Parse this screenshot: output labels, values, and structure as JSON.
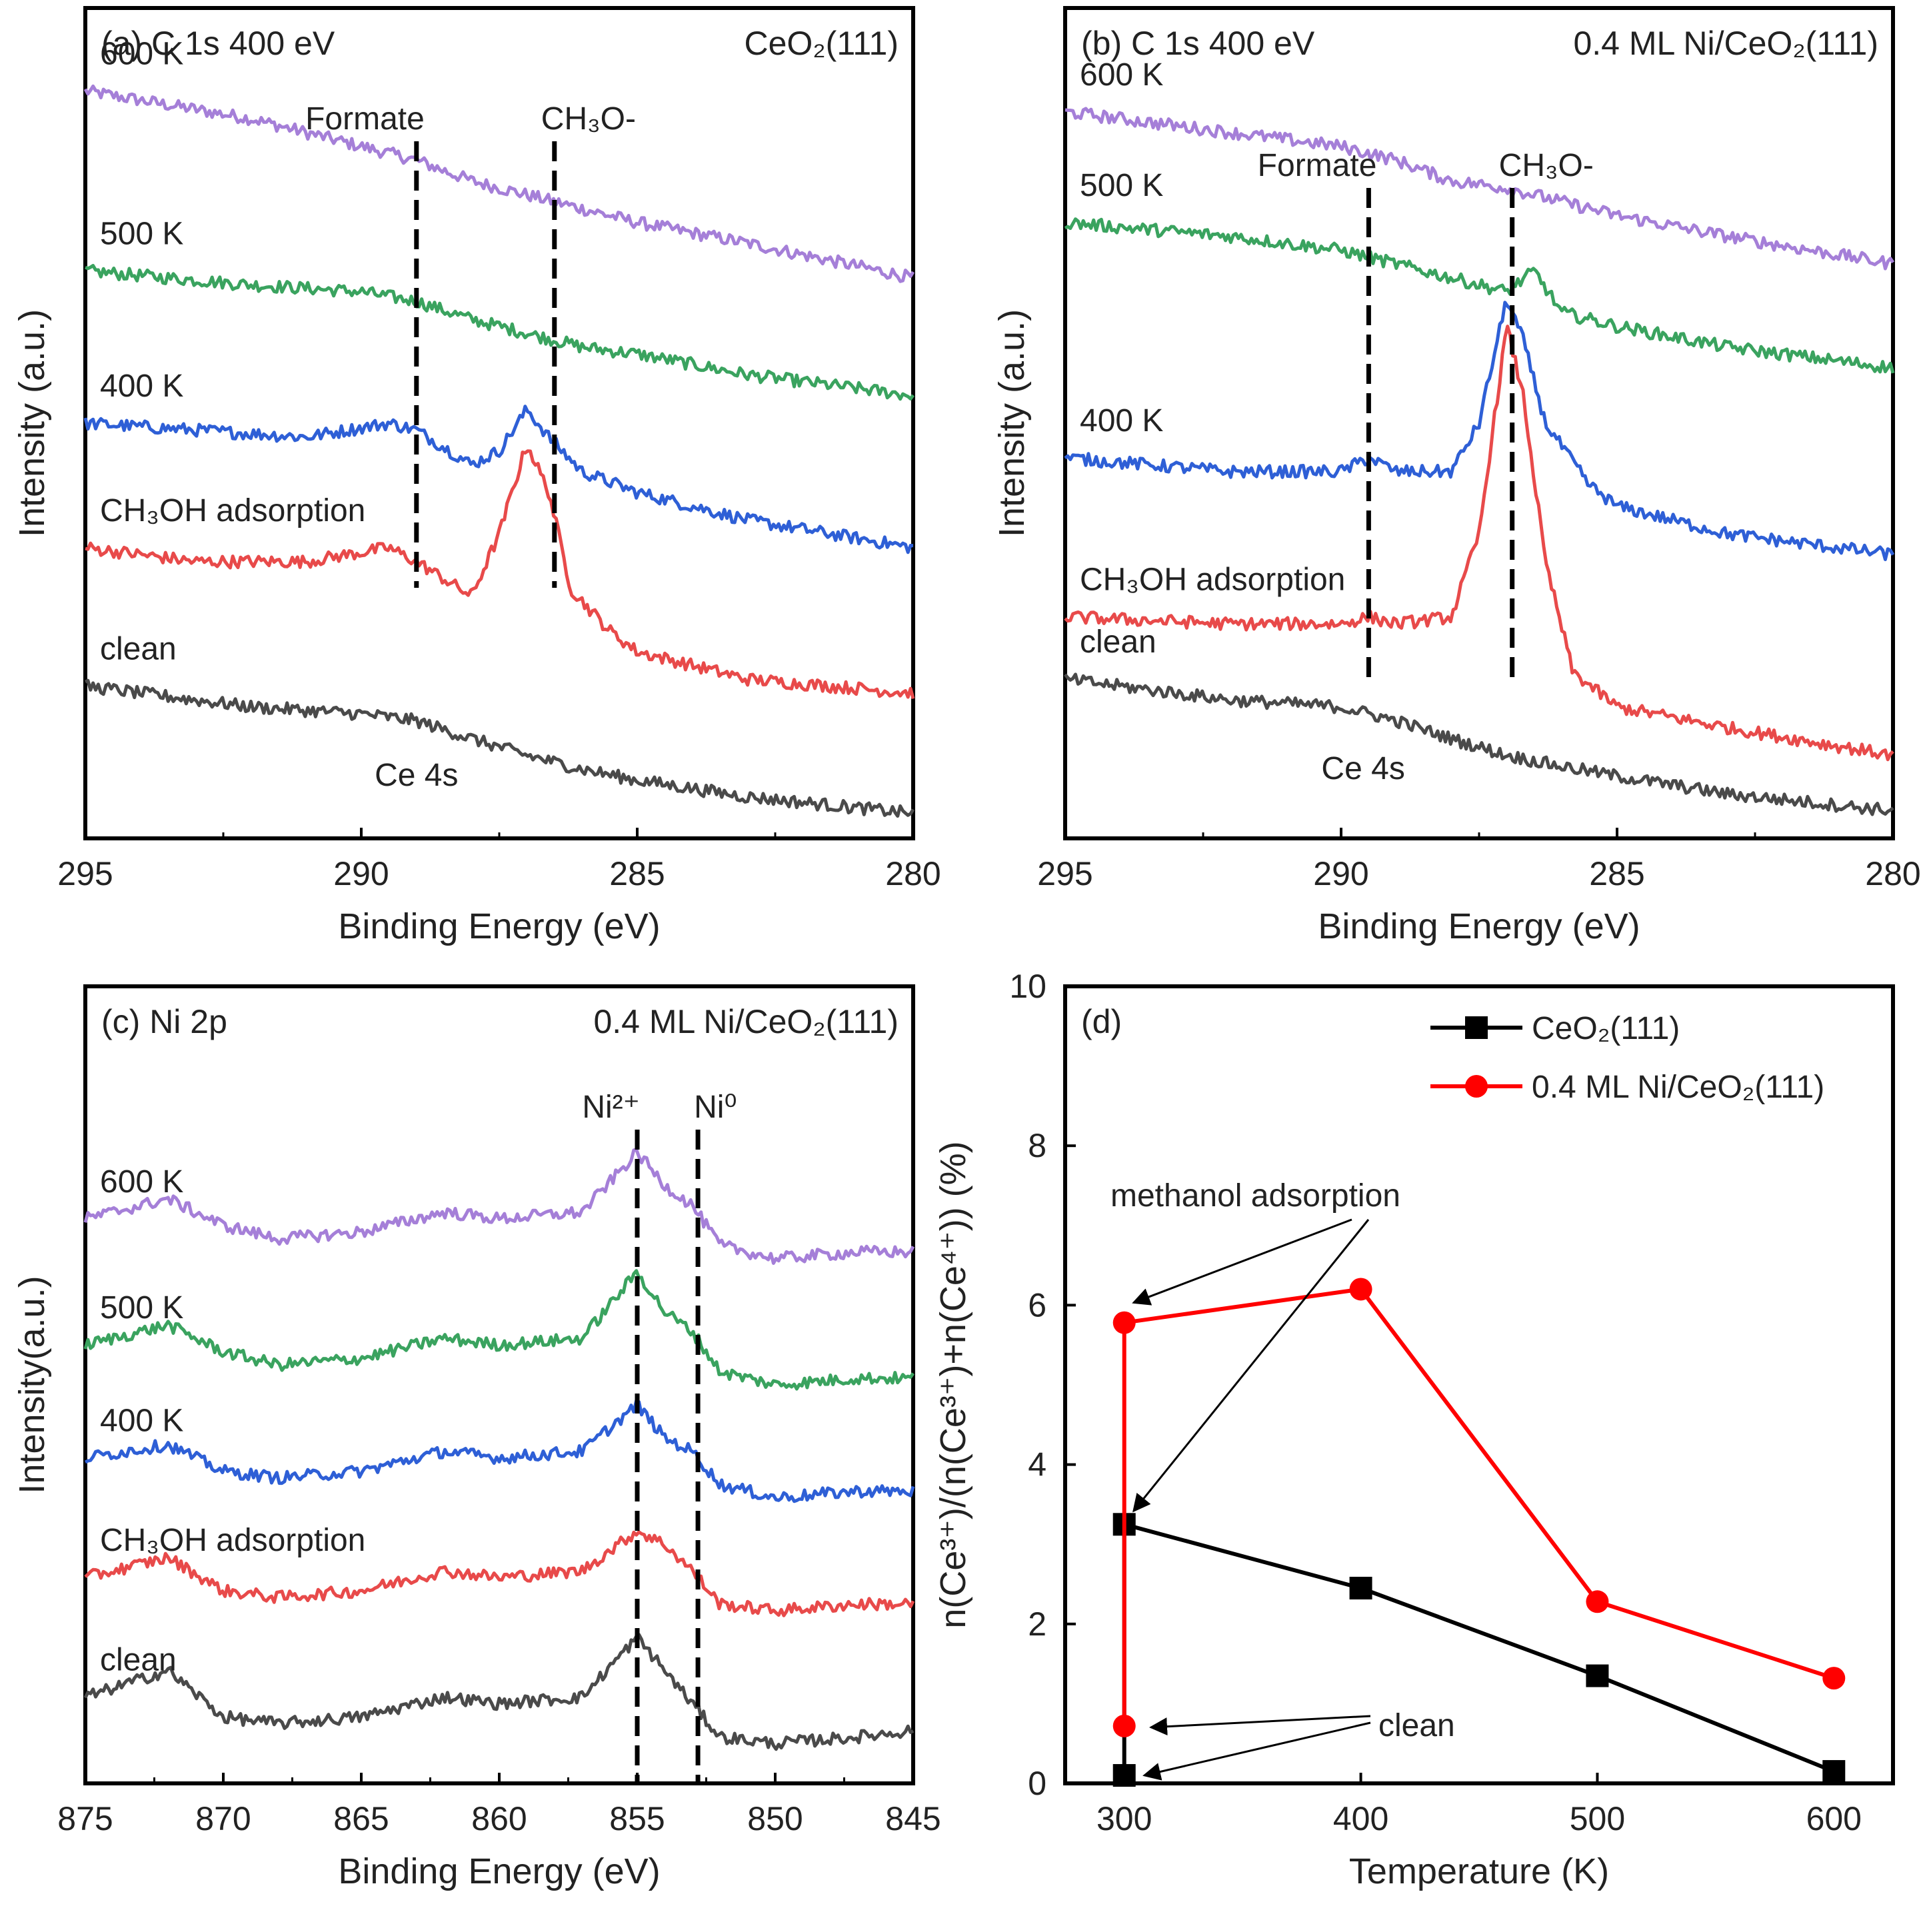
{
  "chart_data": [
    {
      "type": "line",
      "panel_label": "(a) C 1s 400 eV",
      "sample_label": "CeO₂(111)",
      "xlabel": "Binding Energy (eV)",
      "ylabel": "Intensity (a.u.)",
      "xlim": [
        295,
        280
      ],
      "x_reversed": true,
      "xticks": [
        295,
        290,
        285,
        280
      ],
      "y_ticks_shown": false,
      "grid": false,
      "series": [
        {
          "name": "600 K",
          "color": "#a57fd8",
          "x": [
            295,
            292,
            290,
            289,
            288,
            287,
            286,
            285,
            283,
            280
          ],
          "y": [
            5.4,
            5.2,
            5.0,
            4.9,
            4.75,
            4.65,
            4.55,
            4.45,
            4.3,
            4.05
          ]
        },
        {
          "name": "500 K",
          "color": "#3aa35f",
          "x": [
            295,
            292,
            290,
            289,
            288,
            287,
            286,
            285,
            283,
            280
          ],
          "y": [
            4.1,
            4.0,
            3.95,
            3.88,
            3.75,
            3.65,
            3.55,
            3.5,
            3.35,
            3.2
          ]
        },
        {
          "name": "400 K",
          "color": "#2e5fd6",
          "x": [
            295,
            293,
            291,
            289.5,
            289,
            288,
            287.5,
            287,
            286.6,
            286,
            285,
            283,
            280
          ],
          "y": [
            3.0,
            2.95,
            2.9,
            3.0,
            2.95,
            2.7,
            2.8,
            3.1,
            2.9,
            2.65,
            2.5,
            2.3,
            2.1
          ]
        },
        {
          "name": "CH₃OH adsorption",
          "color": "#e84a4a",
          "x": [
            295,
            293,
            291,
            289.5,
            289,
            288,
            287.5,
            287,
            286.6,
            286.2,
            285.5,
            285,
            283,
            280
          ],
          "y": [
            2.1,
            2.0,
            2.0,
            2.1,
            2.0,
            1.75,
            2.2,
            2.85,
            2.5,
            1.8,
            1.5,
            1.35,
            1.15,
            1.05
          ]
        },
        {
          "name": "clean",
          "color": "#4a4a4a",
          "x": [
            295,
            292,
            290,
            289,
            288,
            287,
            286,
            285,
            283,
            280
          ],
          "y": [
            1.1,
            0.95,
            0.9,
            0.85,
            0.72,
            0.6,
            0.5,
            0.42,
            0.3,
            0.18
          ]
        }
      ],
      "vlines": [
        {
          "x": 289.0,
          "label": "Formate"
        },
        {
          "x": 286.5,
          "label": "CH₃O-"
        }
      ],
      "annotations": [
        {
          "text": "Ce 4s",
          "x": 289.0,
          "y": 0.5
        }
      ],
      "ylim": [
        0,
        6
      ]
    },
    {
      "type": "line",
      "panel_label": "(b) C 1s 400 eV",
      "sample_label": "0.4 ML Ni/CeO₂(111)",
      "xlabel": "Binding Energy (eV)",
      "ylabel": "Intensity (a.u.)",
      "xlim": [
        295,
        280
      ],
      "x_reversed": true,
      "xticks": [
        295,
        290,
        285,
        280
      ],
      "y_ticks_shown": false,
      "grid": false,
      "series": [
        {
          "name": "600 K",
          "color": "#a57fd8",
          "x": [
            295,
            292,
            290,
            289,
            288,
            287,
            286,
            285,
            283,
            280
          ],
          "y": [
            5.25,
            5.1,
            5.0,
            4.9,
            4.75,
            4.7,
            4.6,
            4.5,
            4.35,
            4.15
          ]
        },
        {
          "name": "500 K",
          "color": "#3aa35f",
          "x": [
            295,
            292,
            290,
            289,
            288,
            287,
            286.5,
            286,
            285,
            283,
            280
          ],
          "y": [
            4.45,
            4.35,
            4.25,
            4.15,
            4.05,
            3.95,
            4.1,
            3.8,
            3.7,
            3.55,
            3.4
          ]
        },
        {
          "name": "400 K",
          "color": "#2e5fd6",
          "x": [
            295,
            292,
            290,
            289.5,
            289,
            288,
            287.5,
            287,
            286.7,
            286.3,
            285.5,
            285,
            283,
            280
          ],
          "y": [
            2.75,
            2.65,
            2.65,
            2.75,
            2.65,
            2.65,
            3.0,
            3.9,
            3.6,
            3.0,
            2.55,
            2.4,
            2.2,
            2.05
          ]
        },
        {
          "name": "CH₃OH adsorption",
          "color": "#e84a4a",
          "x": [
            295,
            292,
            290,
            289.5,
            289,
            288,
            287.5,
            287,
            286.7,
            286.3,
            285.8,
            285,
            283,
            280
          ],
          "y": [
            1.6,
            1.55,
            1.55,
            1.6,
            1.55,
            1.6,
            2.2,
            3.7,
            3.2,
            2.0,
            1.2,
            0.95,
            0.8,
            0.6
          ]
        },
        {
          "name": "clean",
          "color": "#4a4a4a",
          "x": [
            295,
            292,
            290,
            289,
            288,
            287,
            286,
            285,
            283,
            280
          ],
          "y": [
            1.15,
            1.0,
            0.95,
            0.85,
            0.72,
            0.6,
            0.52,
            0.45,
            0.32,
            0.2
          ]
        }
      ],
      "vlines": [
        {
          "x": 289.5,
          "label": "Formate"
        },
        {
          "x": 286.9,
          "label": "CH₃O-"
        }
      ],
      "annotations": [
        {
          "text": "Ce 4s",
          "x": 289.6,
          "y": 0.55
        }
      ],
      "ylim": [
        0,
        6
      ]
    },
    {
      "type": "line",
      "panel_label": "(c) Ni 2p",
      "sample_label": "0.4 ML Ni/CeO₂(111)",
      "xlabel": "Binding Energy (eV)",
      "ylabel": "Intensity(a.u.)",
      "xlim": [
        875,
        845
      ],
      "x_reversed": true,
      "xticks": [
        875,
        870,
        865,
        860,
        855,
        850,
        845
      ],
      "y_ticks_shown": false,
      "grid": false,
      "series": [
        {
          "name": "600 K",
          "color": "#a57fd8",
          "x": [
            875,
            872,
            870,
            868,
            865,
            862,
            860,
            857,
            855,
            854,
            853,
            852,
            850,
            847,
            845
          ],
          "y": [
            4.25,
            4.4,
            4.2,
            4.1,
            4.15,
            4.3,
            4.25,
            4.3,
            4.75,
            4.5,
            4.35,
            4.05,
            3.95,
            4.0,
            4.0
          ]
        },
        {
          "name": "500 K",
          "color": "#3aa35f",
          "x": [
            875,
            872,
            870,
            868,
            865,
            862,
            860,
            857,
            855,
            854,
            853,
            852,
            850,
            847,
            845
          ],
          "y": [
            3.3,
            3.45,
            3.25,
            3.15,
            3.2,
            3.35,
            3.3,
            3.35,
            3.85,
            3.55,
            3.4,
            3.1,
            3.0,
            3.05,
            3.05
          ]
        },
        {
          "name": "400 K",
          "color": "#2e5fd6",
          "x": [
            875,
            872,
            870,
            868,
            865,
            862,
            860,
            857,
            855,
            854,
            853,
            852,
            850,
            847,
            845
          ],
          "y": [
            2.45,
            2.55,
            2.35,
            2.3,
            2.35,
            2.5,
            2.45,
            2.5,
            2.85,
            2.6,
            2.5,
            2.25,
            2.15,
            2.2,
            2.2
          ]
        },
        {
          "name": "CH₃OH adsorption",
          "color": "#e84a4a",
          "x": [
            875,
            872,
            870,
            868,
            865,
            862,
            860,
            857,
            855,
            854,
            853,
            852,
            850,
            847,
            845
          ],
          "y": [
            1.55,
            1.7,
            1.45,
            1.4,
            1.45,
            1.6,
            1.55,
            1.6,
            1.9,
            1.8,
            1.6,
            1.35,
            1.3,
            1.35,
            1.35
          ]
        },
        {
          "name": "clean",
          "color": "#4a4a4a",
          "x": [
            875,
            872,
            870,
            868,
            865,
            862,
            860,
            857,
            855,
            854,
            853,
            852,
            850,
            847,
            845
          ],
          "y": [
            0.65,
            0.85,
            0.5,
            0.45,
            0.5,
            0.65,
            0.6,
            0.65,
            1.1,
            0.85,
            0.6,
            0.35,
            0.3,
            0.35,
            0.4
          ]
        }
      ],
      "vlines": [
        {
          "x": 855.0,
          "label": "Ni²⁺"
        },
        {
          "x": 852.8,
          "label": "Ni⁰"
        }
      ],
      "ylim": [
        0,
        6
      ]
    },
    {
      "type": "line",
      "panel_label": "(d)",
      "xlabel": "Temperature (K)",
      "ylabel": "n(Ce³⁺)/(n(Ce³⁺)+n(Ce⁴⁺)) (%)",
      "xlim": [
        275,
        625
      ],
      "ylim": [
        0,
        10
      ],
      "xticks": [
        300,
        400,
        500,
        600
      ],
      "yticks": [
        0,
        2,
        4,
        6,
        8,
        10
      ],
      "grid": false,
      "legend_position": "top-right",
      "series": [
        {
          "name": "CeO₂(111)",
          "color": "#000000",
          "marker": "square",
          "x": [
            300,
            300,
            400,
            500,
            600
          ],
          "y": [
            0.1,
            3.25,
            2.45,
            1.35,
            0.15
          ]
        },
        {
          "name": "0.4 ML Ni/CeO₂(111)",
          "color": "#ff0000",
          "marker": "circle",
          "x": [
            300,
            300,
            400,
            500,
            600
          ],
          "y": [
            0.72,
            5.78,
            6.2,
            2.28,
            1.32
          ]
        }
      ],
      "annotations": [
        {
          "text": "methanol adsorption",
          "x": 450,
          "y": 7.6
        },
        {
          "text": "clean",
          "x": 412,
          "y": 0.6
        }
      ]
    }
  ]
}
